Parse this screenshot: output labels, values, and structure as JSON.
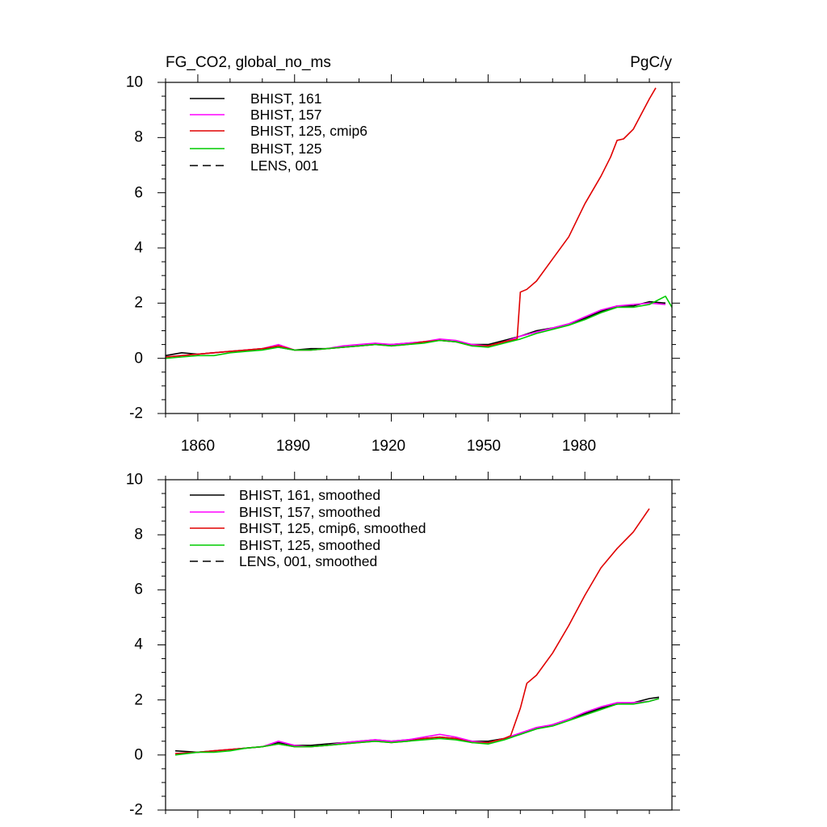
{
  "colors": {
    "black": "#000000",
    "magenta": "#ff00ff",
    "red": "#e00000",
    "green": "#00cc00"
  },
  "chart_data": [
    {
      "type": "line",
      "title": "FG_CO2, global_no_ms",
      "units": "PgC/y",
      "xlim": [
        1850,
        2007
      ],
      "ylim": [
        -2,
        10
      ],
      "xticks": [
        1860,
        1890,
        1920,
        1950,
        1980
      ],
      "yticks": [
        -2,
        0,
        2,
        4,
        6,
        8,
        10
      ],
      "ytick_labels": [
        "-2",
        "0",
        "2",
        "4",
        "6",
        "8",
        "10"
      ],
      "xtick_labels": [
        "1860",
        "1890",
        "1920",
        "1950",
        "1980"
      ],
      "series": [
        {
          "name": "BHIST, 161",
          "color": "black",
          "dash": false,
          "x": [
            1850,
            1855,
            1860,
            1865,
            1870,
            1875,
            1880,
            1885,
            1890,
            1895,
            1900,
            1905,
            1910,
            1915,
            1920,
            1925,
            1930,
            1935,
            1940,
            1945,
            1950,
            1955,
            1960,
            1965,
            1970,
            1975,
            1980,
            1985,
            1990,
            1995,
            2000,
            2005
          ],
          "y": [
            0.1,
            0.2,
            0.15,
            0.2,
            0.25,
            0.3,
            0.35,
            0.4,
            0.3,
            0.35,
            0.35,
            0.4,
            0.45,
            0.5,
            0.5,
            0.55,
            0.6,
            0.65,
            0.6,
            0.5,
            0.5,
            0.65,
            0.8,
            1.0,
            1.1,
            1.25,
            1.45,
            1.7,
            1.9,
            1.9,
            2.05,
            2.0
          ]
        },
        {
          "name": "BHIST, 157",
          "color": "magenta",
          "dash": false,
          "x": [
            1850,
            1855,
            1860,
            1865,
            1870,
            1875,
            1880,
            1885,
            1890,
            1895,
            1900,
            1905,
            1910,
            1915,
            1920,
            1925,
            1930,
            1935,
            1940,
            1945,
            1950,
            1955,
            1960,
            1965,
            1970,
            1975,
            1980,
            1985,
            1990,
            1995,
            2000,
            2005
          ],
          "y": [
            0.05,
            0.1,
            0.15,
            0.2,
            0.25,
            0.3,
            0.35,
            0.5,
            0.3,
            0.3,
            0.35,
            0.45,
            0.5,
            0.55,
            0.5,
            0.55,
            0.6,
            0.7,
            0.65,
            0.5,
            0.45,
            0.6,
            0.8,
            0.95,
            1.1,
            1.25,
            1.5,
            1.75,
            1.9,
            1.95,
            2.0,
            1.95
          ]
        },
        {
          "name": "BHIST, 125, cmip6",
          "color": "red",
          "dash": false,
          "x": [
            1850,
            1855,
            1860,
            1865,
            1870,
            1875,
            1880,
            1885,
            1890,
            1895,
            1900,
            1905,
            1910,
            1915,
            1920,
            1925,
            1930,
            1935,
            1940,
            1945,
            1950,
            1955,
            1959,
            1960,
            1962,
            1965,
            1970,
            1975,
            1980,
            1985,
            1988,
            1990,
            1992,
            1995,
            2000,
            2002
          ],
          "y": [
            0.05,
            0.1,
            0.15,
            0.2,
            0.25,
            0.3,
            0.35,
            0.45,
            0.3,
            0.3,
            0.35,
            0.4,
            0.45,
            0.5,
            0.45,
            0.5,
            0.6,
            0.65,
            0.6,
            0.45,
            0.45,
            0.6,
            0.7,
            2.4,
            2.5,
            2.8,
            3.6,
            4.4,
            5.6,
            6.6,
            7.3,
            7.9,
            7.95,
            8.3,
            9.4,
            9.8
          ]
        },
        {
          "name": "BHIST, 125",
          "color": "green",
          "dash": false,
          "x": [
            1850,
            1855,
            1860,
            1865,
            1870,
            1875,
            1880,
            1885,
            1890,
            1895,
            1900,
            1905,
            1910,
            1915,
            1920,
            1925,
            1930,
            1935,
            1940,
            1945,
            1950,
            1955,
            1960,
            1965,
            1970,
            1975,
            1980,
            1985,
            1990,
            1995,
            2000,
            2005,
            2007
          ],
          "y": [
            0.0,
            0.05,
            0.1,
            0.1,
            0.2,
            0.25,
            0.3,
            0.4,
            0.3,
            0.3,
            0.35,
            0.4,
            0.45,
            0.5,
            0.45,
            0.5,
            0.55,
            0.65,
            0.6,
            0.45,
            0.4,
            0.55,
            0.7,
            0.9,
            1.05,
            1.2,
            1.4,
            1.65,
            1.85,
            1.85,
            1.95,
            2.25,
            1.85
          ]
        },
        {
          "name": "LENS, 001",
          "color": "black",
          "dash": true,
          "x": [],
          "y": []
        }
      ]
    },
    {
      "type": "line",
      "title": "",
      "units": "",
      "xlim": [
        1850,
        2007
      ],
      "ylim": [
        -2,
        10
      ],
      "xticks": [
        1860,
        1890,
        1920,
        1950,
        1980
      ],
      "yticks": [
        -2,
        0,
        2,
        4,
        6,
        8,
        10
      ],
      "ytick_labels": [
        "-2",
        "0",
        "2",
        "4",
        "6",
        "8",
        "10"
      ],
      "xtick_labels": [],
      "series": [
        {
          "name": "BHIST, 161, smoothed",
          "color": "black",
          "dash": false,
          "x": [
            1853,
            1860,
            1865,
            1870,
            1875,
            1880,
            1885,
            1890,
            1895,
            1900,
            1905,
            1910,
            1915,
            1920,
            1925,
            1930,
            1935,
            1940,
            1945,
            1950,
            1955,
            1960,
            1965,
            1970,
            1975,
            1980,
            1985,
            1990,
            1995,
            2000,
            2003
          ],
          "y": [
            0.15,
            0.1,
            0.15,
            0.2,
            0.25,
            0.3,
            0.45,
            0.35,
            0.35,
            0.4,
            0.45,
            0.5,
            0.55,
            0.5,
            0.55,
            0.6,
            0.65,
            0.6,
            0.5,
            0.5,
            0.6,
            0.75,
            0.95,
            1.1,
            1.3,
            1.5,
            1.7,
            1.85,
            1.9,
            2.05,
            2.1
          ]
        },
        {
          "name": "BHIST, 157, smoothed",
          "color": "magenta",
          "dash": false,
          "x": [
            1853,
            1860,
            1865,
            1870,
            1875,
            1880,
            1885,
            1890,
            1895,
            1900,
            1905,
            1910,
            1915,
            1920,
            1925,
            1930,
            1935,
            1940,
            1945,
            1950,
            1955,
            1960,
            1965,
            1970,
            1975,
            1980,
            1985,
            1990,
            1995,
            2000,
            2003
          ],
          "y": [
            0.05,
            0.1,
            0.15,
            0.2,
            0.25,
            0.3,
            0.5,
            0.35,
            0.3,
            0.35,
            0.45,
            0.5,
            0.55,
            0.5,
            0.55,
            0.65,
            0.75,
            0.65,
            0.5,
            0.45,
            0.6,
            0.8,
            1.0,
            1.1,
            1.3,
            1.55,
            1.75,
            1.9,
            1.9,
            1.95,
            2.05
          ]
        },
        {
          "name": "BHIST, 125, cmip6, smoothed",
          "color": "red",
          "dash": false,
          "x": [
            1853,
            1860,
            1865,
            1870,
            1875,
            1880,
            1885,
            1890,
            1895,
            1900,
            1905,
            1910,
            1915,
            1920,
            1925,
            1930,
            1935,
            1940,
            1945,
            1950,
            1955,
            1957,
            1960,
            1962,
            1965,
            1970,
            1975,
            1980,
            1985,
            1990,
            1995,
            2000
          ],
          "y": [
            0.05,
            0.1,
            0.15,
            0.2,
            0.25,
            0.3,
            0.4,
            0.3,
            0.3,
            0.35,
            0.4,
            0.45,
            0.5,
            0.45,
            0.5,
            0.6,
            0.65,
            0.6,
            0.45,
            0.45,
            0.6,
            0.7,
            1.7,
            2.6,
            2.9,
            3.7,
            4.7,
            5.8,
            6.8,
            7.5,
            8.1,
            8.95
          ]
        },
        {
          "name": "BHIST, 125, smoothed",
          "color": "green",
          "dash": false,
          "x": [
            1853,
            1860,
            1865,
            1870,
            1875,
            1880,
            1885,
            1890,
            1895,
            1900,
            1905,
            1910,
            1915,
            1920,
            1925,
            1930,
            1935,
            1940,
            1945,
            1950,
            1955,
            1960,
            1965,
            1970,
            1975,
            1980,
            1985,
            1990,
            1995,
            2000,
            2003
          ],
          "y": [
            0.0,
            0.1,
            0.1,
            0.15,
            0.25,
            0.3,
            0.4,
            0.3,
            0.3,
            0.35,
            0.4,
            0.45,
            0.5,
            0.45,
            0.5,
            0.55,
            0.6,
            0.55,
            0.45,
            0.4,
            0.55,
            0.75,
            0.95,
            1.05,
            1.25,
            1.45,
            1.65,
            1.85,
            1.85,
            1.95,
            2.05
          ]
        },
        {
          "name": "LENS, 001, smoothed",
          "color": "black",
          "dash": true,
          "x": [],
          "y": []
        }
      ]
    }
  ]
}
